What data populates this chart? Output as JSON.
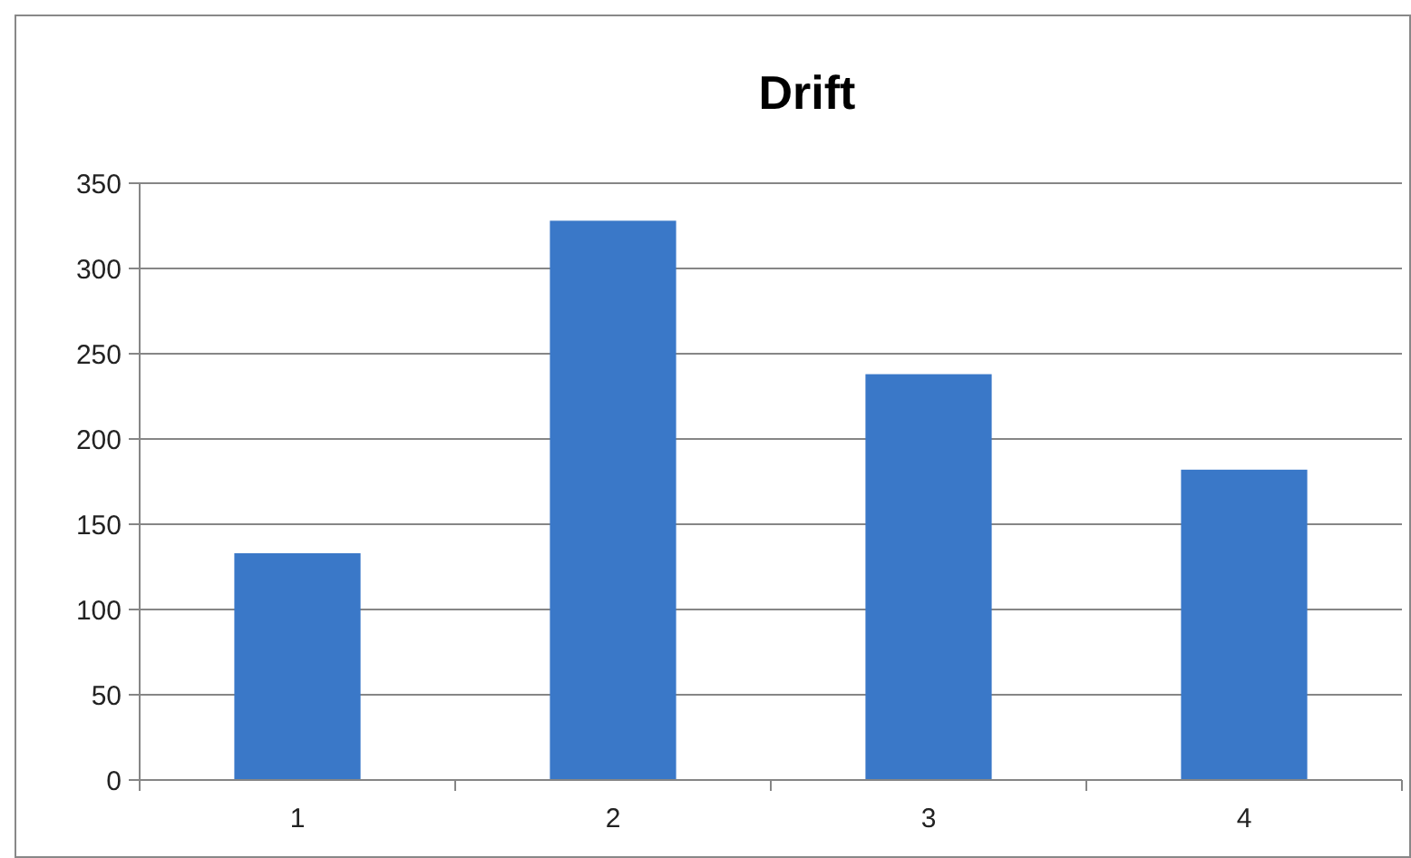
{
  "chart_data": {
    "type": "bar",
    "title": "Drift",
    "categories": [
      "1",
      "2",
      "3",
      "4"
    ],
    "values": [
      133,
      328,
      238,
      182
    ],
    "color": "#3a78c8",
    "ylim": [
      0,
      350
    ],
    "yticks": [
      0,
      50,
      100,
      150,
      200,
      250,
      300,
      350
    ],
    "grid": "y"
  }
}
